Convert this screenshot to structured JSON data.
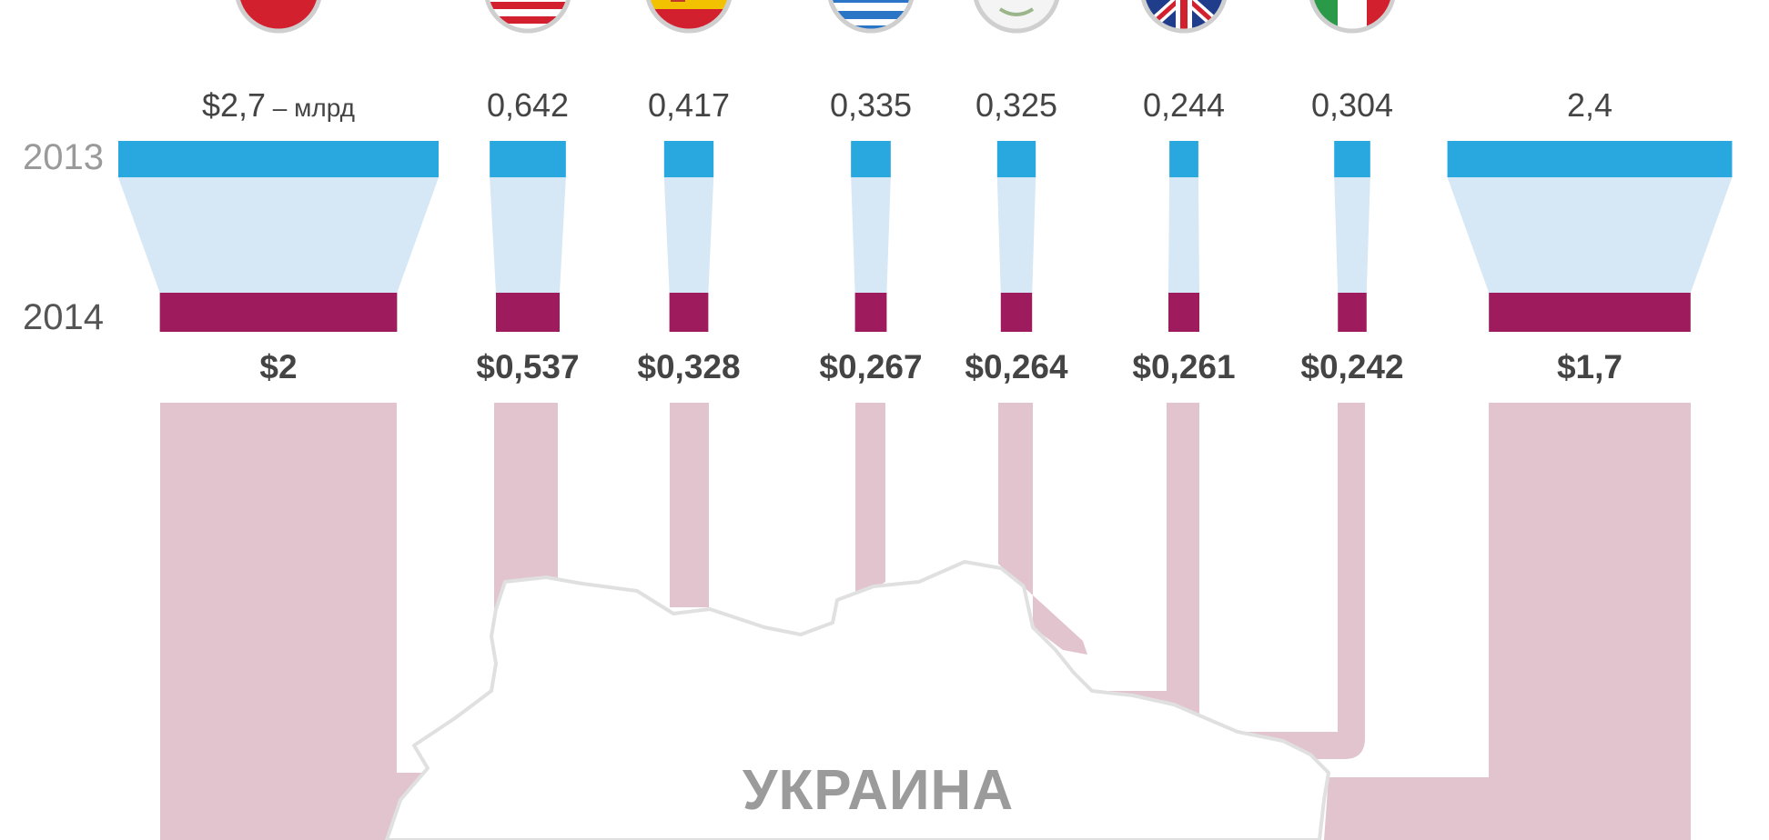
{
  "chart_data": {
    "type": "bar",
    "title": "",
    "unit_note": "– млрд",
    "years": [
      "2013",
      "2014"
    ],
    "categories": [
      {
        "flag": "russia-flag",
        "v2013_label": "$2,7",
        "v2014_label": "$2"
      },
      {
        "flag": "usa-flag",
        "v2013_label": "0,642",
        "v2014_label": "$0,537"
      },
      {
        "flag": "spain-flag",
        "v2013_label": "0,417",
        "v2014_label": "$0,328"
      },
      {
        "flag": "greece-flag",
        "v2013_label": "0,335",
        "v2014_label": "$0,267"
      },
      {
        "flag": "cyprus-flag",
        "v2013_label": "0,325",
        "v2014_label": "$0,264"
      },
      {
        "flag": "uk-flag",
        "v2013_label": "0,244",
        "v2014_label": "$0,261"
      },
      {
        "flag": "italy-flag",
        "v2013_label": "0,304",
        "v2014_label": "$0,242"
      },
      {
        "flag": "",
        "v2013_label": "2,4",
        "v2014_label": "$1,7"
      }
    ],
    "series": [
      {
        "name": "2013",
        "values": [
          2.7,
          0.642,
          0.417,
          0.335,
          0.325,
          0.244,
          0.304,
          2.4
        ]
      },
      {
        "name": "2014",
        "values": [
          2.0,
          0.537,
          0.328,
          0.267,
          0.264,
          0.261,
          0.242,
          1.7
        ]
      }
    ],
    "map_label": "УКРАИНА"
  },
  "colors": {
    "bar_2013": "#29a8e0",
    "bar_2014": "#9e1b5e",
    "connector": "#d6e7f5",
    "flow": "#e2c4cf",
    "year_2013_text": "#9a9a9a",
    "year_2014_text": "#555555",
    "value_text": "#444444",
    "map_label": "#9b9b9b"
  }
}
